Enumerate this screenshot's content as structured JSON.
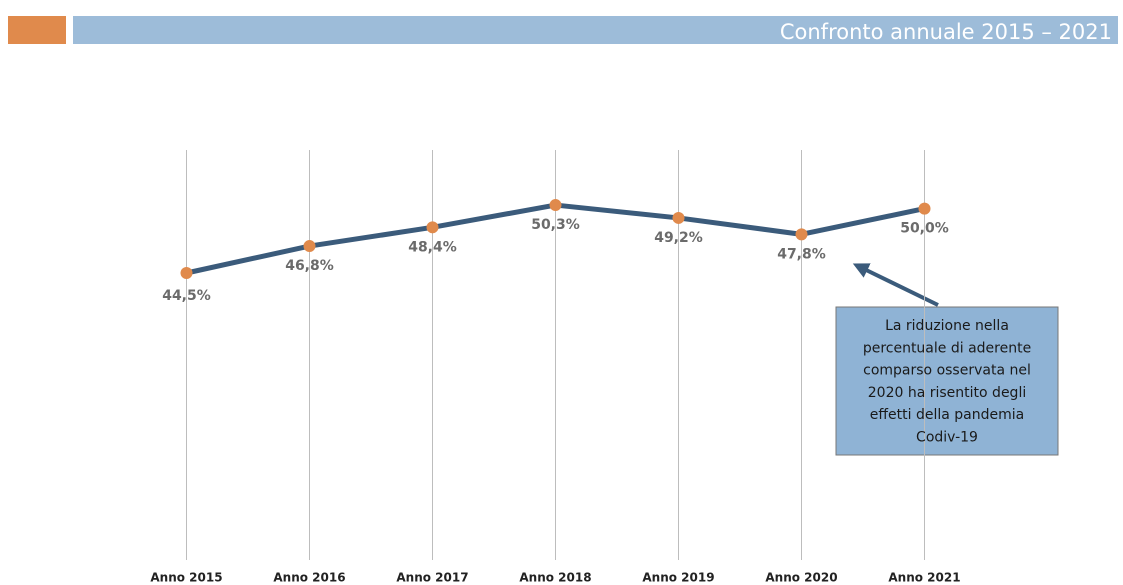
{
  "chart_data": {
    "type": "line",
    "title": "Confronto annuale 2015 – 2021",
    "categories": [
      "Anno 2015",
      "Anno 2016",
      "Anno 2017",
      "Anno 2018",
      "Anno 2019",
      "Anno 2020",
      "Anno 2021"
    ],
    "values": [
      44.5,
      46.8,
      48.4,
      50.3,
      49.2,
      47.8,
      50.0
    ],
    "value_labels": [
      "44,5%",
      "46,8%",
      "48,4%",
      "50,3%",
      "49,2%",
      "47,8%",
      "50,0%"
    ],
    "color": "#3b5b7b",
    "marker_color": "#e08a4c",
    "ylim": [
      20,
      55
    ],
    "annotation": [
      "La riduzione nella",
      "percentuale di aderente",
      "comparso osservata nel",
      "2020 ha risentito degli",
      "effetti della pandemia",
      "Codiv-19"
    ]
  }
}
